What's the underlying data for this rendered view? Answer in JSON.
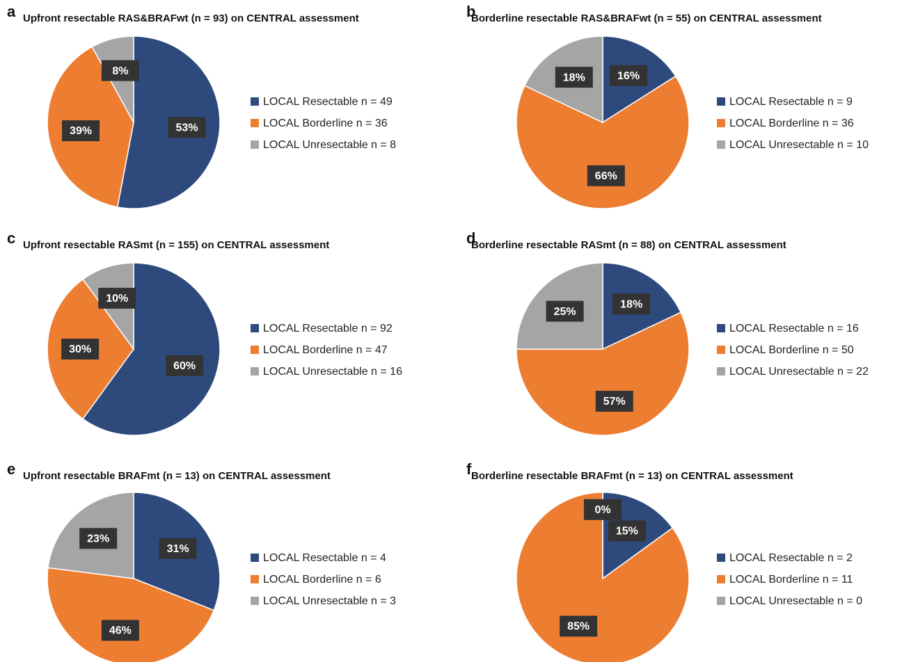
{
  "chart_data": [
    {
      "type": "pie",
      "panel": "a",
      "title": "Upfront resectable RAS&BRAFwt (n = 93) on CENTRAL assessment",
      "categories": [
        "LOCAL Resectable n = 49",
        "LOCAL Borderline n = 36",
        "LOCAL Unresectable n = 8"
      ],
      "values": [
        53,
        39,
        8
      ],
      "value_labels": [
        "53%",
        "39%",
        "8%"
      ],
      "colors": [
        "#2e4a7d",
        "#ed7d31",
        "#a5a5a5"
      ]
    },
    {
      "type": "pie",
      "panel": "b",
      "title": "Borderline resectable RAS&BRAFwt (n = 55) on CENTRAL assessment",
      "categories": [
        "LOCAL Resectable n = 9",
        "LOCAL Borderline n = 36",
        "LOCAL Unresectable n = 10"
      ],
      "values": [
        16,
        66,
        18
      ],
      "value_labels": [
        "16%",
        "66%",
        "18%"
      ],
      "colors": [
        "#2e4a7d",
        "#ed7d31",
        "#a5a5a5"
      ]
    },
    {
      "type": "pie",
      "panel": "c",
      "title": "Upfront resectable RASmt (n = 155) on CENTRAL assessment",
      "categories": [
        "LOCAL Resectable n = 92",
        "LOCAL Borderline n = 47",
        "LOCAL Unresectable n = 16"
      ],
      "values": [
        60,
        30,
        10
      ],
      "value_labels": [
        "60%",
        "30%",
        "10%"
      ],
      "colors": [
        "#2e4a7d",
        "#ed7d31",
        "#a5a5a5"
      ]
    },
    {
      "type": "pie",
      "panel": "d",
      "title": "Borderline resectable RASmt (n = 88) on CENTRAL assessment",
      "categories": [
        "LOCAL Resectable n = 16",
        "LOCAL Borderline n = 50",
        "LOCAL Unresectable n = 22"
      ],
      "values": [
        18,
        57,
        25
      ],
      "value_labels": [
        "18%",
        "57%",
        "25%"
      ],
      "colors": [
        "#2e4a7d",
        "#ed7d31",
        "#a5a5a5"
      ]
    },
    {
      "type": "pie",
      "panel": "e",
      "title": "Upfront resectable BRAFmt (n = 13) on CENTRAL assessment",
      "categories": [
        "LOCAL Resectable n = 4",
        "LOCAL Borderline n = 6",
        "LOCAL Unresectable n = 3"
      ],
      "values": [
        31,
        46,
        23
      ],
      "value_labels": [
        "31%",
        "46%",
        "23%"
      ],
      "colors": [
        "#2e4a7d",
        "#ed7d31",
        "#a5a5a5"
      ]
    },
    {
      "type": "pie",
      "panel": "f",
      "title": "Borderline resectable BRAFmt (n = 13) on CENTRAL assessment",
      "categories": [
        "LOCAL Resectable n = 2",
        "LOCAL Borderline n = 11",
        "LOCAL Unresectable n = 0"
      ],
      "values": [
        15,
        85,
        0
      ],
      "value_labels": [
        "15%",
        "85%",
        "0%"
      ],
      "colors": [
        "#2e4a7d",
        "#ed7d31",
        "#a5a5a5"
      ]
    }
  ]
}
